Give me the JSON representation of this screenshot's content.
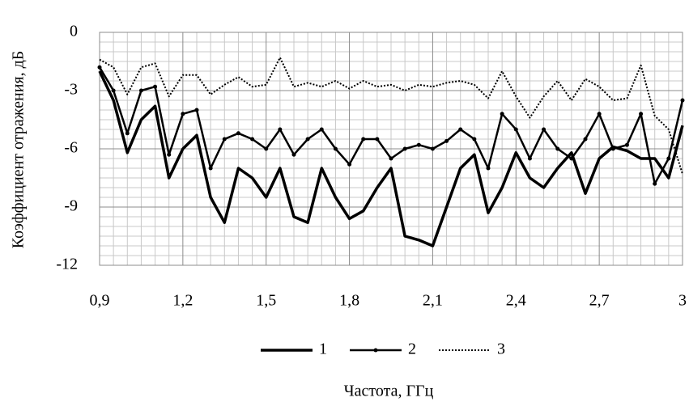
{
  "chart_data": {
    "type": "line",
    "x_label": "Частота, ГГц",
    "y_label": "Коэффициент отражения, дБ",
    "x": [
      0.9,
      0.95,
      1.0,
      1.05,
      1.1,
      1.15,
      1.2,
      1.25,
      1.3,
      1.35,
      1.4,
      1.45,
      1.5,
      1.55,
      1.6,
      1.65,
      1.7,
      1.75,
      1.8,
      1.85,
      1.9,
      1.95,
      2.0,
      2.05,
      2.1,
      2.15,
      2.2,
      2.25,
      2.3,
      2.35,
      2.4,
      2.45,
      2.5,
      2.55,
      2.6,
      2.65,
      2.7,
      2.75,
      2.8,
      2.85,
      2.9,
      2.95,
      3.0
    ],
    "series": [
      {
        "name": "1",
        "color": "#000000",
        "style": "solid",
        "marker": false,
        "values": [
          -2,
          -3.5,
          -6.2,
          -4.5,
          -3.8,
          -7.5,
          -6,
          -5.3,
          -8.5,
          -9.8,
          -7,
          -7.5,
          -8.5,
          -7,
          -9.5,
          -9.8,
          -7,
          -8.5,
          -9.6,
          -9.2,
          -8,
          -7,
          -10.5,
          -10.7,
          -11,
          -9,
          -7,
          -6.3,
          -9.3,
          -8,
          -6.2,
          -7.5,
          -8,
          -7,
          -6.2,
          -8.3,
          -6.5,
          -5.9,
          -6.1,
          -6.5,
          -6.5,
          -7.5,
          -4.8
        ]
      },
      {
        "name": "2",
        "color": "#000000",
        "style": "solid",
        "marker": true,
        "values": [
          -1.8,
          -3,
          -5.2,
          -3,
          -2.8,
          -6.3,
          -4.2,
          -4,
          -7,
          -5.5,
          -5.2,
          -5.5,
          -6,
          -5,
          -6.3,
          -5.5,
          -5,
          -6,
          -6.8,
          -5.5,
          -5.5,
          -6.5,
          -6,
          -5.8,
          -6,
          -5.6,
          -5,
          -5.5,
          -7,
          -4.2,
          -5,
          -6.5,
          -5,
          -6,
          -6.5,
          -5.5,
          -4.2,
          -6,
          -5.8,
          -4.2,
          -7.8,
          -6.5,
          -3.5
        ]
      },
      {
        "name": "3",
        "color": "#000000",
        "style": "dotted",
        "marker": false,
        "values": [
          -1.4,
          -1.8,
          -3.2,
          -1.8,
          -1.6,
          -3.3,
          -2.2,
          -2.2,
          -3.2,
          -2.7,
          -2.3,
          -2.8,
          -2.7,
          -1.3,
          -2.8,
          -2.6,
          -2.8,
          -2.5,
          -2.9,
          -2.5,
          -2.8,
          -2.7,
          -3,
          -2.7,
          -2.8,
          -2.6,
          -2.5,
          -2.7,
          -3.4,
          -2,
          -3.3,
          -4.4,
          -3.3,
          -2.5,
          -3.5,
          -2.4,
          -2.8,
          -3.5,
          -3.4,
          -1.7,
          -4.3,
          -5,
          -7.3
        ]
      }
    ],
    "xlim": [
      0.9,
      3
    ],
    "ylim": [
      -12,
      0
    ],
    "xticks": [
      {
        "value": 0.9,
        "label": "0,9"
      },
      {
        "value": 1.2,
        "label": "1,2"
      },
      {
        "value": 1.5,
        "label": "1,5"
      },
      {
        "value": 1.8,
        "label": "1,8"
      },
      {
        "value": 2.1,
        "label": "2,1"
      },
      {
        "value": 2.4,
        "label": "2,4"
      },
      {
        "value": 2.7,
        "label": "2,7"
      },
      3
    ],
    "yticks": [
      0,
      -3,
      -6,
      -9,
      -12
    ],
    "grid": true,
    "legend": "bottom"
  }
}
